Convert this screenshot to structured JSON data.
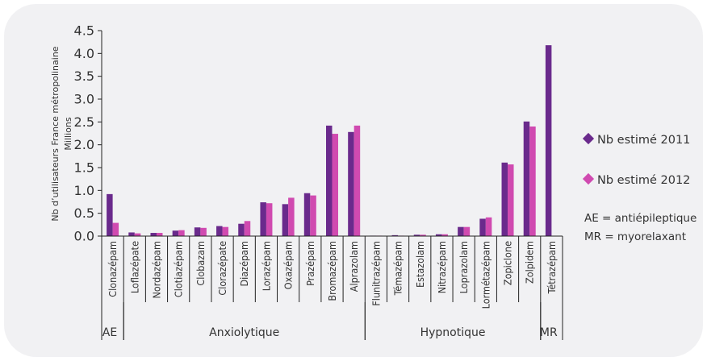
{
  "chart_data": {
    "type": "bar",
    "title": "",
    "ylabel_line1": "Nb d’utilisateurs France métropolinaine",
    "ylabel_line2": "Millions",
    "ylim": [
      0,
      4.5
    ],
    "yticks": [
      "0.0",
      "0.5",
      "1.0",
      "1.5",
      "2.0",
      "2.5",
      "3.0",
      "3.5",
      "4.0",
      "4.5"
    ],
    "categories": [
      "Clonazépam",
      "Loflazépate",
      "Nordazépam",
      "Clotiazépam",
      "Clobazam",
      "Clorazépate",
      "Diazépam",
      "Lorazépam",
      "Oxazépam",
      "Prazépam",
      "Bromazépam",
      "Alprazolam",
      "Flunitrazépam",
      "Témazépam",
      "Estazolam",
      "Nitrazépam",
      "Loprazolam",
      "Lormétazépam",
      "Zopiclone",
      "Zolpidem",
      "Tétrazépam"
    ],
    "series": [
      {
        "name": "Nb estimé 2011",
        "color": "#6a2a8c",
        "values": [
          0.92,
          0.08,
          0.07,
          0.12,
          0.19,
          0.22,
          0.27,
          0.74,
          0.7,
          0.94,
          2.42,
          2.28,
          0.01,
          0.02,
          0.03,
          0.04,
          0.2,
          0.38,
          1.61,
          2.51,
          4.18
        ]
      },
      {
        "name": "Nb estimé 2012",
        "color": "#d04ab0",
        "values": [
          0.29,
          0.06,
          0.07,
          0.13,
          0.18,
          0.2,
          0.33,
          0.72,
          0.84,
          0.89,
          2.24,
          2.42,
          0.01,
          0.01,
          0.03,
          0.04,
          0.2,
          0.41,
          1.57,
          2.4,
          null
        ]
      }
    ],
    "groups": [
      {
        "label": "AE",
        "from": 0,
        "to": 0
      },
      {
        "label": "Anxiolytique",
        "from": 1,
        "to": 11
      },
      {
        "label": "Hypnotique",
        "from": 12,
        "to": 19
      },
      {
        "label": "MR",
        "from": 20,
        "to": 20
      }
    ],
    "legend": {
      "position": "right",
      "notes": [
        "AE = antiépileptique",
        "MR = myorelaxant"
      ]
    },
    "grid": false
  }
}
